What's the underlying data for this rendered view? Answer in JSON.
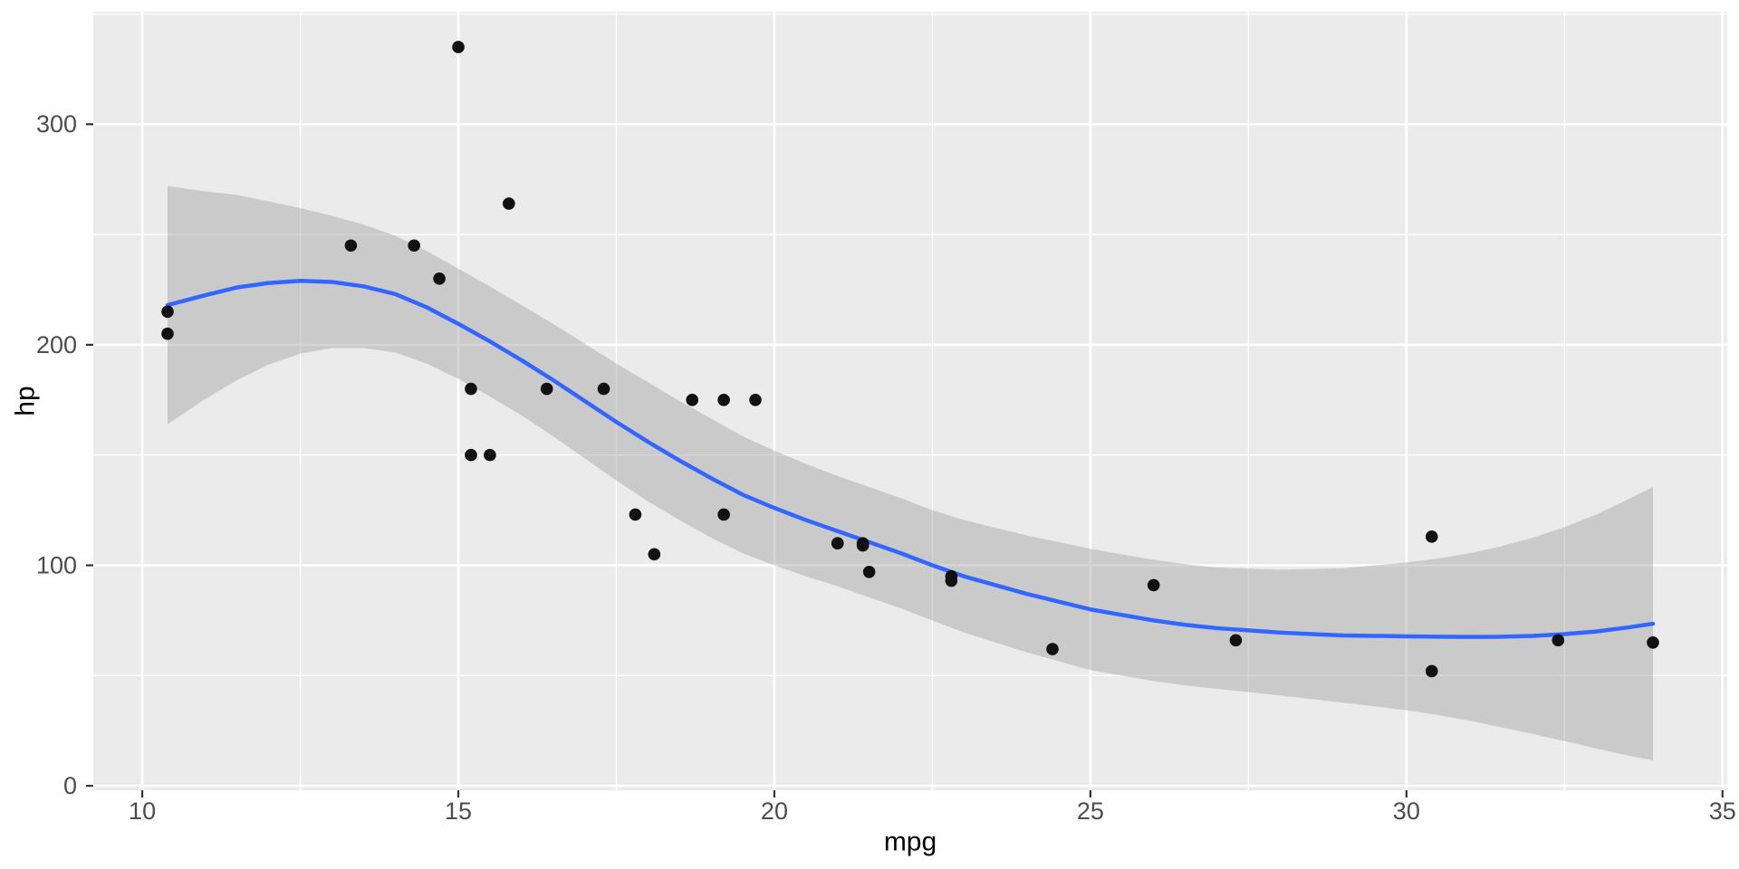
{
  "chart": {
    "panel_bg": "#EBEBEB",
    "outer_bg": "#FFFFFF",
    "grid_color": "#FFFFFF",
    "point_color": "#111111",
    "line_color": "#3366FF",
    "ribbon_color": "#999999",
    "ribbon_opacity": 0.4,
    "tick_label_color": "#4D4D4D",
    "axis_title_color": "#000000",
    "tick_mark_color": "#333333"
  },
  "chart_data": {
    "type": "scatter",
    "title": "",
    "xlabel": "mpg",
    "ylabel": "hp",
    "xlim": [
      9.225,
      35.075
    ],
    "ylim": [
      -2,
      351
    ],
    "x_ticks": [
      10,
      15,
      20,
      25,
      30,
      35
    ],
    "y_ticks": [
      0,
      100,
      200,
      300
    ],
    "x_minor": [
      12.5,
      17.5,
      22.5,
      27.5,
      32.5
    ],
    "y_minor": [
      50,
      150,
      250,
      350
    ],
    "grid": true,
    "legend": "none",
    "points": [
      [
        21.0,
        110
      ],
      [
        21.0,
        110
      ],
      [
        22.8,
        93
      ],
      [
        21.4,
        110
      ],
      [
        18.7,
        175
      ],
      [
        18.1,
        105
      ],
      [
        14.3,
        245
      ],
      [
        24.4,
        62
      ],
      [
        22.8,
        95
      ],
      [
        19.2,
        123
      ],
      [
        17.8,
        123
      ],
      [
        16.4,
        180
      ],
      [
        17.3,
        180
      ],
      [
        15.2,
        180
      ],
      [
        10.4,
        205
      ],
      [
        10.4,
        215
      ],
      [
        14.7,
        230
      ],
      [
        32.4,
        66
      ],
      [
        30.4,
        52
      ],
      [
        33.9,
        65
      ],
      [
        21.5,
        97
      ],
      [
        15.5,
        150
      ],
      [
        15.2,
        150
      ],
      [
        13.3,
        245
      ],
      [
        19.2,
        175
      ],
      [
        27.3,
        66
      ],
      [
        26.0,
        91
      ],
      [
        30.4,
        113
      ],
      [
        15.8,
        264
      ],
      [
        19.7,
        175
      ],
      [
        15.0,
        335
      ],
      [
        21.4,
        109
      ]
    ],
    "smooth": {
      "method": "loess",
      "x": [
        10.4,
        11,
        11.5,
        12,
        12.5,
        13,
        13.5,
        14,
        14.5,
        15,
        15.5,
        16,
        16.5,
        17,
        17.5,
        18,
        18.5,
        19,
        19.5,
        20,
        20.5,
        21,
        21.5,
        22,
        22.5,
        23,
        23.5,
        24,
        24.5,
        25,
        25.5,
        26,
        26.5,
        27,
        27.5,
        28,
        28.5,
        29,
        29.5,
        30,
        30.5,
        31,
        31.5,
        32,
        32.5,
        33,
        33.5,
        33.9
      ],
      "fit": [
        218,
        222.5,
        226,
        228,
        229,
        228.5,
        226.5,
        223,
        217,
        209.5,
        201.5,
        193,
        184,
        174.5,
        165,
        156,
        147.5,
        139.5,
        132,
        126,
        120.5,
        115.5,
        110.5,
        105.5,
        100,
        95,
        91,
        87,
        83.5,
        80,
        77.5,
        75,
        73,
        71.5,
        70.5,
        69.5,
        68.8,
        68.2,
        68,
        67.8,
        67.6,
        67.5,
        67.6,
        68,
        68.8,
        70,
        71.8,
        73.5
      ],
      "half_width": [
        54,
        47,
        42,
        37,
        33,
        30,
        28,
        26.5,
        25.5,
        25,
        25,
        25,
        25.5,
        26,
        26.5,
        27,
        27,
        27,
        26.5,
        26,
        25.5,
        25,
        25,
        25,
        25,
        25.5,
        26,
        26.5,
        27,
        27.5,
        27.5,
        27.5,
        27.5,
        27.5,
        28,
        28.5,
        29.5,
        30.5,
        32,
        33.5,
        35.5,
        38,
        41,
        44.5,
        48.5,
        53,
        58,
        62
      ]
    }
  }
}
